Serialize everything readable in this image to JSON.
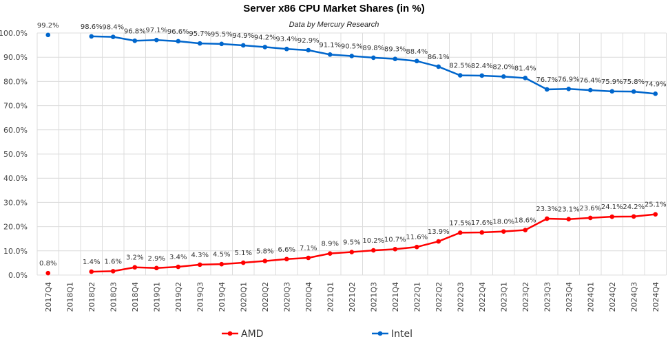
{
  "chart_data": {
    "type": "line",
    "title": "Server x86 CPU Market Shares (in %)",
    "subtitle": "Data by Mercury Research",
    "xlabel": "",
    "ylabel": "",
    "ylim": [
      0,
      100
    ],
    "yticks": [
      "0.0%",
      "10.0%",
      "20.0%",
      "30.0%",
      "40.0%",
      "50.0%",
      "60.0%",
      "70.0%",
      "80.0%",
      "90.0%",
      "100.0%"
    ],
    "grid": true,
    "legend": "bottom",
    "categories": [
      "2017Q4",
      "2018Q1",
      "2018Q2",
      "2018Q3",
      "2018Q4",
      "2019Q1",
      "2019Q2",
      "2019Q3",
      "2019Q4",
      "2020Q1",
      "2020Q2",
      "2020Q3",
      "2020Q4",
      "2021Q1",
      "2021Q2",
      "2021Q3",
      "2021Q4",
      "2022Q1",
      "2022Q2",
      "2022Q3",
      "2022Q4",
      "2023Q1",
      "2023Q2",
      "2023Q3",
      "2023Q4",
      "2024Q1",
      "2024Q2",
      "2024Q3",
      "2024Q4"
    ],
    "series": [
      {
        "name": "AMD",
        "color": "#ff0000",
        "values": [
          0.8,
          null,
          1.4,
          1.6,
          3.2,
          2.9,
          3.4,
          4.3,
          4.5,
          5.1,
          5.8,
          6.6,
          7.1,
          8.9,
          9.5,
          10.2,
          10.7,
          11.6,
          13.9,
          17.5,
          17.6,
          18.0,
          18.6,
          23.3,
          23.1,
          23.6,
          24.1,
          24.2,
          25.1
        ]
      },
      {
        "name": "Intel",
        "color": "#0066cc",
        "values": [
          99.2,
          null,
          98.6,
          98.4,
          96.8,
          97.1,
          96.6,
          95.7,
          95.5,
          94.9,
          94.2,
          93.4,
          92.9,
          91.1,
          90.5,
          89.8,
          89.3,
          88.4,
          86.1,
          82.5,
          82.4,
          82.0,
          81.4,
          76.7,
          76.9,
          76.4,
          75.9,
          75.8,
          74.9
        ]
      }
    ]
  }
}
